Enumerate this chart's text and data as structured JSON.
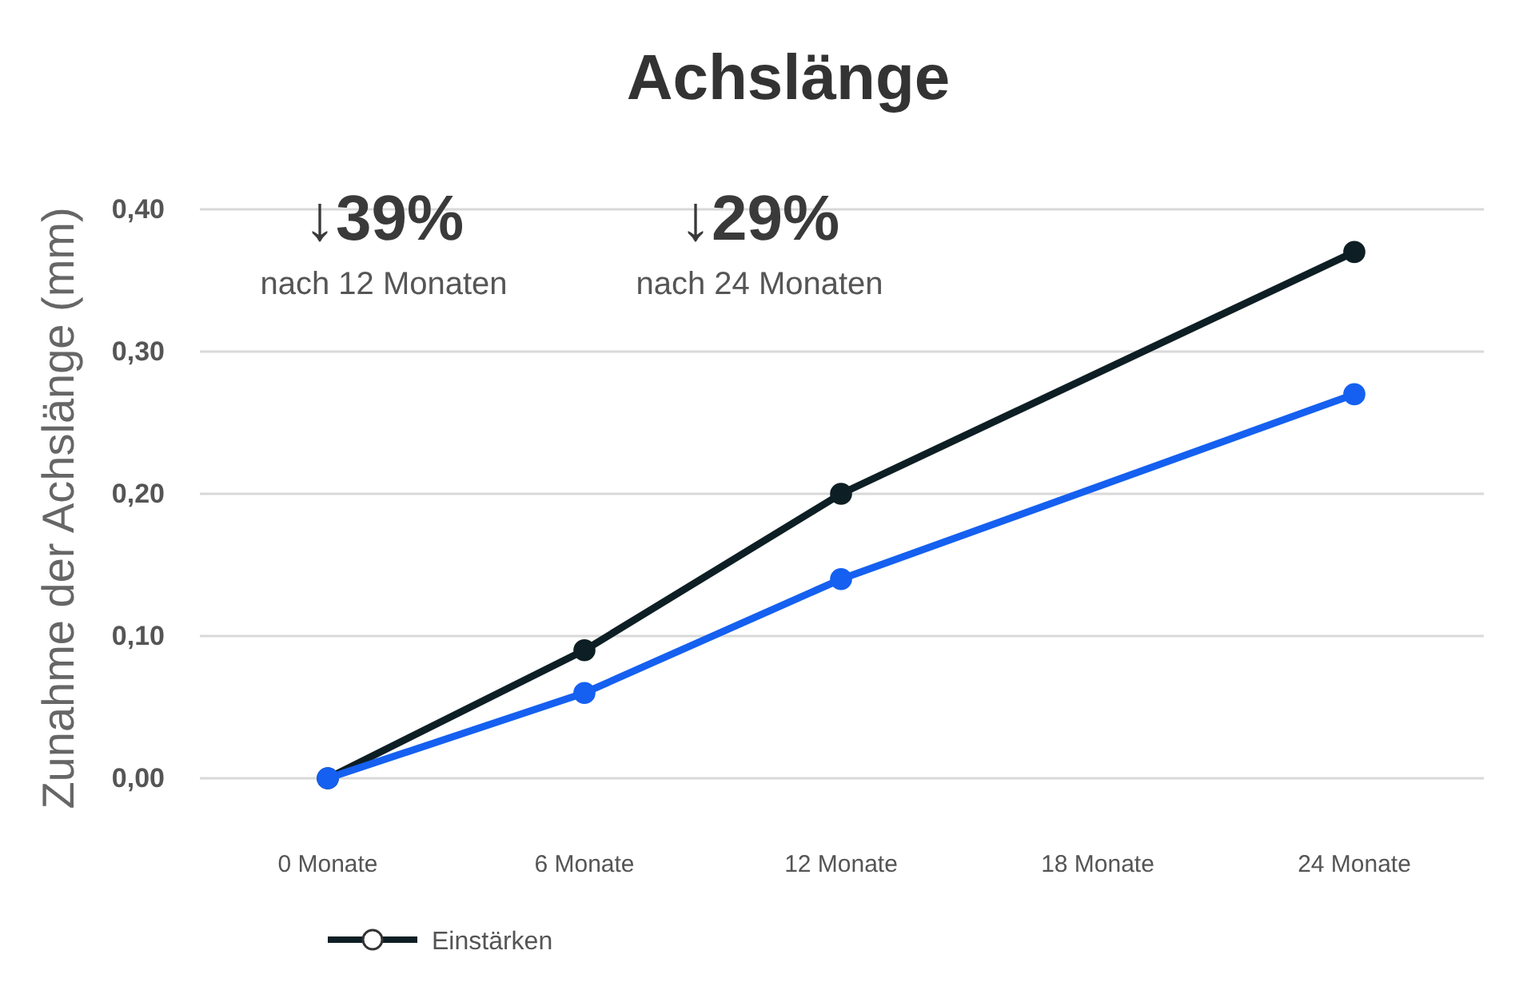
{
  "chart_data": {
    "type": "line",
    "title": "Achslänge",
    "ylabel": "Zunahme der Achslänge (mm)",
    "categories": [
      "0 Monate",
      "6 Monate",
      "12 Monate",
      "18 Monate",
      "24 Monate"
    ],
    "series": [
      {
        "name": "Einstärken",
        "color": "#0d1f24",
        "values": [
          0,
          0.09,
          0.2,
          null,
          0.37
        ]
      },
      {
        "color": "#1560f0",
        "values": [
          0,
          0.06,
          0.14,
          null,
          0.27
        ]
      }
    ],
    "ylim": [
      0,
      0.4
    ],
    "yticks": [
      {
        "value": 0,
        "label": "0,00"
      },
      {
        "value": 0.1,
        "label": "0,10"
      },
      {
        "value": 0.2,
        "label": "0,20"
      },
      {
        "value": 0.3,
        "label": "0,30"
      },
      {
        "value": 0.4,
        "label": "0,40"
      }
    ],
    "annotations": [
      "↓39%",
      "nach 12 Monaten",
      "↓29%",
      "nach 24 Monaten"
    ],
    "grid": "y",
    "legend": "bottom",
    "marker": "circle"
  }
}
